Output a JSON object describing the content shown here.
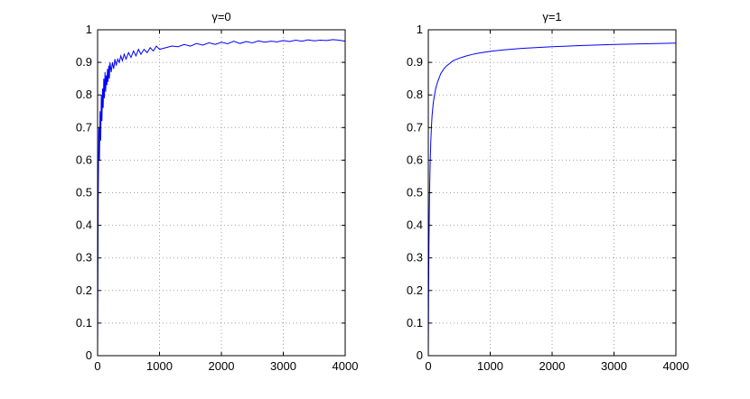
{
  "chart_data": [
    {
      "type": "line",
      "title": "γ=0",
      "xlabel": "",
      "ylabel": "",
      "xlim": [
        0,
        4000
      ],
      "ylim": [
        0,
        1
      ],
      "x_ticks": [
        0,
        1000,
        2000,
        3000,
        4000
      ],
      "y_ticks": [
        0,
        0.1,
        0.2,
        0.3,
        0.4,
        0.5,
        0.6,
        0.7,
        0.8,
        0.9,
        1
      ],
      "x_tick_labels": [
        "0",
        "1000",
        "2000",
        "3000",
        "4000"
      ],
      "y_tick_labels": [
        "0",
        "0.1",
        "0.2",
        "0.3",
        "0.4",
        "0.5",
        "0.6",
        "0.7",
        "0.8",
        "0.9",
        "1"
      ],
      "grid": true,
      "series": [
        {
          "color": "#0000ff",
          "x": [
            0,
            10,
            20,
            30,
            40,
            50,
            60,
            70,
            80,
            90,
            100,
            110,
            120,
            130,
            140,
            150,
            160,
            170,
            180,
            190,
            200,
            220,
            240,
            260,
            280,
            300,
            325,
            350,
            375,
            400,
            430,
            460,
            500,
            540,
            580,
            620,
            660,
            700,
            750,
            800,
            850,
            900,
            950,
            1000,
            1100,
            1200,
            1300,
            1400,
            1500,
            1600,
            1700,
            1800,
            1900,
            2000,
            2100,
            2200,
            2300,
            2400,
            2500,
            2600,
            2700,
            2800,
            2900,
            3000,
            3100,
            3200,
            3300,
            3400,
            3500,
            3600,
            3700,
            3800,
            3900,
            4000
          ],
          "y": [
            0.0,
            0.48,
            0.7,
            0.6,
            0.75,
            0.66,
            0.8,
            0.72,
            0.82,
            0.76,
            0.85,
            0.79,
            0.87,
            0.81,
            0.86,
            0.83,
            0.88,
            0.84,
            0.89,
            0.85,
            0.9,
            0.87,
            0.9,
            0.88,
            0.91,
            0.89,
            0.91,
            0.9,
            0.92,
            0.905,
            0.925,
            0.91,
            0.93,
            0.915,
            0.935,
            0.92,
            0.94,
            0.925,
            0.94,
            0.93,
            0.945,
            0.935,
            0.95,
            0.94,
            0.945,
            0.95,
            0.948,
            0.955,
            0.95,
            0.958,
            0.953,
            0.96,
            0.955,
            0.962,
            0.957,
            0.965,
            0.958,
            0.964,
            0.96,
            0.966,
            0.962,
            0.965,
            0.963,
            0.967,
            0.964,
            0.968,
            0.965,
            0.969,
            0.966,
            0.968,
            0.967,
            0.97,
            0.968,
            0.965
          ]
        }
      ]
    },
    {
      "type": "line",
      "title": "γ=1",
      "xlabel": "",
      "ylabel": "",
      "xlim": [
        0,
        4000
      ],
      "ylim": [
        0,
        1
      ],
      "x_ticks": [
        0,
        1000,
        2000,
        3000,
        4000
      ],
      "y_ticks": [
        0,
        0.1,
        0.2,
        0.3,
        0.4,
        0.5,
        0.6,
        0.7,
        0.8,
        0.9,
        1
      ],
      "x_tick_labels": [
        "0",
        "1000",
        "2000",
        "3000",
        "4000"
      ],
      "y_tick_labels": [
        "0",
        "0.1",
        "0.2",
        "0.3",
        "0.4",
        "0.5",
        "0.6",
        "0.7",
        "0.8",
        "0.9",
        "1"
      ],
      "grid": true,
      "series": [
        {
          "color": "#0000ff",
          "x": [
            0,
            5,
            10,
            20,
            30,
            40,
            50,
            60,
            80,
            100,
            120,
            150,
            200,
            250,
            300,
            400,
            500,
            600,
            700,
            800,
            1000,
            1200,
            1500,
            2000,
            2500,
            3000,
            3500,
            4000
          ],
          "y": [
            0.0,
            0.18,
            0.34,
            0.5,
            0.59,
            0.655,
            0.7,
            0.735,
            0.775,
            0.8,
            0.82,
            0.84,
            0.865,
            0.88,
            0.89,
            0.905,
            0.913,
            0.919,
            0.924,
            0.928,
            0.934,
            0.938,
            0.943,
            0.948,
            0.952,
            0.955,
            0.957,
            0.959
          ]
        }
      ]
    }
  ]
}
